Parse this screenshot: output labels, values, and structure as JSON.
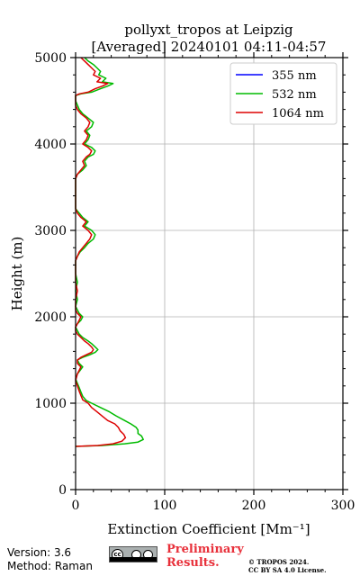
{
  "chart_data": {
    "type": "line",
    "title_lines": [
      "pollyxt_tropos at Leipzig",
      "[Averaged] 20240101 04:11-04:57"
    ],
    "xlabel": "Extinction Coefficient [Mm⁻¹]",
    "ylabel": "Height (m)",
    "xlim": [
      0,
      300
    ],
    "ylim": [
      0,
      5000
    ],
    "xticks": [
      0,
      100,
      200,
      300
    ],
    "yticks": [
      0,
      1000,
      2000,
      3000,
      4000,
      5000
    ],
    "grid": true,
    "legend_position": "top-right",
    "series": [
      {
        "name": "355 nm",
        "color": "#0000ff",
        "points": []
      },
      {
        "name": "532 nm",
        "color": "#00bb00",
        "points": [
          [
            0,
            500
          ],
          [
            30,
            510
          ],
          [
            55,
            530
          ],
          [
            70,
            550
          ],
          [
            76,
            580
          ],
          [
            74,
            620
          ],
          [
            70,
            650
          ],
          [
            70,
            690
          ],
          [
            68,
            720
          ],
          [
            62,
            760
          ],
          [
            55,
            800
          ],
          [
            46,
            850
          ],
          [
            38,
            900
          ],
          [
            28,
            950
          ],
          [
            18,
            1000
          ],
          [
            12,
            1030
          ],
          [
            8,
            1080
          ],
          [
            6,
            1130
          ],
          [
            4,
            1180
          ],
          [
            2,
            1230
          ],
          [
            0,
            1280
          ],
          [
            2,
            1340
          ],
          [
            5,
            1380
          ],
          [
            8,
            1420
          ],
          [
            4,
            1460
          ],
          [
            2,
            1500
          ],
          [
            8,
            1530
          ],
          [
            16,
            1560
          ],
          [
            22,
            1590
          ],
          [
            25,
            1620
          ],
          [
            22,
            1650
          ],
          [
            18,
            1690
          ],
          [
            14,
            1720
          ],
          [
            8,
            1760
          ],
          [
            4,
            1800
          ],
          [
            2,
            1840
          ],
          [
            0,
            1880
          ],
          [
            2,
            1920
          ],
          [
            6,
            1960
          ],
          [
            8,
            2000
          ],
          [
            4,
            2040
          ],
          [
            2,
            2080
          ],
          [
            0,
            2120
          ],
          [
            2,
            2200
          ],
          [
            0,
            2300
          ],
          [
            2,
            2400
          ],
          [
            0,
            2500
          ],
          [
            0,
            2650
          ],
          [
            2,
            2700
          ],
          [
            5,
            2750
          ],
          [
            10,
            2800
          ],
          [
            14,
            2850
          ],
          [
            20,
            2900
          ],
          [
            22,
            2950
          ],
          [
            18,
            3000
          ],
          [
            10,
            3050
          ],
          [
            14,
            3100
          ],
          [
            8,
            3150
          ],
          [
            4,
            3200
          ],
          [
            0,
            3250
          ],
          [
            0,
            3400
          ],
          [
            0,
            3600
          ],
          [
            2,
            3650
          ],
          [
            8,
            3700
          ],
          [
            12,
            3750
          ],
          [
            10,
            3800
          ],
          [
            14,
            3850
          ],
          [
            20,
            3880
          ],
          [
            22,
            3920
          ],
          [
            18,
            3960
          ],
          [
            10,
            4000
          ],
          [
            14,
            4050
          ],
          [
            16,
            4100
          ],
          [
            12,
            4150
          ],
          [
            18,
            4200
          ],
          [
            20,
            4250
          ],
          [
            14,
            4300
          ],
          [
            8,
            4350
          ],
          [
            4,
            4400
          ],
          [
            2,
            4450
          ],
          [
            0,
            4500
          ],
          [
            0,
            4560
          ],
          [
            6,
            4580
          ],
          [
            18,
            4600
          ],
          [
            28,
            4640
          ],
          [
            36,
            4670
          ],
          [
            42,
            4700
          ],
          [
            30,
            4720
          ],
          [
            34,
            4760
          ],
          [
            26,
            4800
          ],
          [
            28,
            4840
          ],
          [
            24,
            4880
          ],
          [
            20,
            4920
          ],
          [
            14,
            4960
          ],
          [
            10,
            5000
          ]
        ]
      },
      {
        "name": "1064 nm",
        "color": "#dd0000",
        "points": [
          [
            0,
            500
          ],
          [
            25,
            510
          ],
          [
            42,
            530
          ],
          [
            52,
            560
          ],
          [
            56,
            600
          ],
          [
            54,
            640
          ],
          [
            50,
            680
          ],
          [
            48,
            720
          ],
          [
            44,
            760
          ],
          [
            36,
            800
          ],
          [
            30,
            850
          ],
          [
            24,
            900
          ],
          [
            18,
            950
          ],
          [
            14,
            1000
          ],
          [
            8,
            1040
          ],
          [
            6,
            1090
          ],
          [
            4,
            1140
          ],
          [
            2,
            1200
          ],
          [
            0,
            1260
          ],
          [
            2,
            1340
          ],
          [
            4,
            1380
          ],
          [
            6,
            1420
          ],
          [
            2,
            1460
          ],
          [
            2,
            1500
          ],
          [
            6,
            1530
          ],
          [
            12,
            1560
          ],
          [
            18,
            1590
          ],
          [
            20,
            1620
          ],
          [
            18,
            1650
          ],
          [
            14,
            1690
          ],
          [
            10,
            1720
          ],
          [
            6,
            1760
          ],
          [
            2,
            1800
          ],
          [
            0,
            1840
          ],
          [
            0,
            1880
          ],
          [
            2,
            1920
          ],
          [
            4,
            1960
          ],
          [
            6,
            2000
          ],
          [
            2,
            2040
          ],
          [
            0,
            2080
          ],
          [
            0,
            2200
          ],
          [
            2,
            2300
          ],
          [
            0,
            2400
          ],
          [
            0,
            2650
          ],
          [
            2,
            2700
          ],
          [
            4,
            2750
          ],
          [
            8,
            2800
          ],
          [
            12,
            2850
          ],
          [
            16,
            2900
          ],
          [
            18,
            2950
          ],
          [
            14,
            3000
          ],
          [
            8,
            3050
          ],
          [
            12,
            3100
          ],
          [
            6,
            3150
          ],
          [
            2,
            3200
          ],
          [
            0,
            3250
          ],
          [
            0,
            3400
          ],
          [
            0,
            3600
          ],
          [
            2,
            3650
          ],
          [
            6,
            3700
          ],
          [
            10,
            3750
          ],
          [
            8,
            3800
          ],
          [
            12,
            3850
          ],
          [
            16,
            3880
          ],
          [
            18,
            3920
          ],
          [
            14,
            3960
          ],
          [
            8,
            4000
          ],
          [
            12,
            4050
          ],
          [
            14,
            4100
          ],
          [
            10,
            4150
          ],
          [
            14,
            4200
          ],
          [
            16,
            4250
          ],
          [
            12,
            4300
          ],
          [
            6,
            4350
          ],
          [
            2,
            4400
          ],
          [
            0,
            4450
          ],
          [
            0,
            4560
          ],
          [
            4,
            4580
          ],
          [
            14,
            4600
          ],
          [
            22,
            4640
          ],
          [
            30,
            4670
          ],
          [
            36,
            4700
          ],
          [
            24,
            4720
          ],
          [
            28,
            4760
          ],
          [
            20,
            4800
          ],
          [
            22,
            4840
          ],
          [
            18,
            4880
          ],
          [
            14,
            4920
          ],
          [
            10,
            4960
          ],
          [
            6,
            5000
          ]
        ]
      }
    ]
  },
  "footer": {
    "version": "Version: 3.6",
    "method": "Method: Raman",
    "cc_label": "cc",
    "preliminary_line1": "Preliminary",
    "preliminary_line2": "Results.",
    "copyright_line1": "© TROPOS 2024.",
    "copyright_line2": "CC BY SA 4.0 License."
  }
}
